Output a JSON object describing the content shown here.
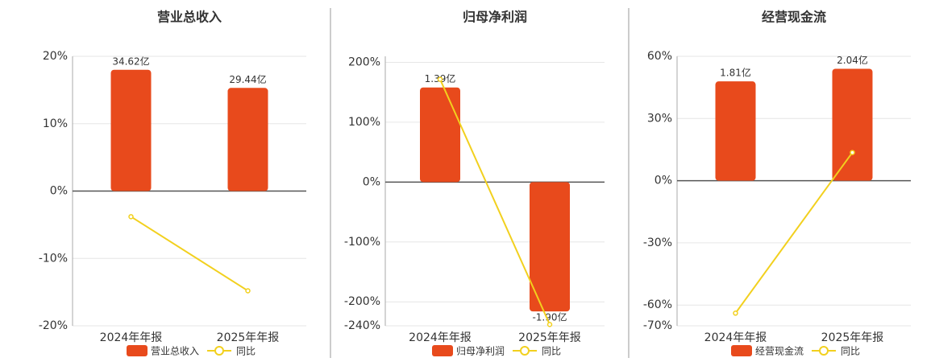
{
  "chart_data": [
    {
      "type": "bar",
      "title": "营业总收入",
      "categories": [
        "2024年年报",
        "2025年年报"
      ],
      "series": [
        {
          "name": "营业总收入",
          "color": "#e84a1c",
          "axis": "y2",
          "values": [
            34.62,
            29.44
          ],
          "value_labels": [
            "34.62亿",
            "29.44亿"
          ]
        },
        {
          "name": "同比",
          "type": "line",
          "color": "#f2d01e",
          "values": [
            -3.8,
            -14.8
          ]
        }
      ],
      "ylim": [
        -20,
        20
      ],
      "yticks": [
        {
          "value": -20,
          "label": "-20%"
        },
        {
          "value": -10,
          "label": "-10%"
        },
        {
          "value": 0,
          "label": "0%"
        },
        {
          "value": 10,
          "label": "10%"
        },
        {
          "value": 20,
          "label": "20%"
        }
      ],
      "grid": true
    },
    {
      "type": "bar",
      "title": "归母净利润",
      "categories": [
        "2024年年报",
        "2025年年报"
      ],
      "series": [
        {
          "name": "归母净利润",
          "color": "#e84a1c",
          "axis": "y2",
          "values": [
            1.39,
            -1.9
          ],
          "value_labels": [
            "1.39亿",
            "-1.90亿"
          ]
        },
        {
          "name": "同比",
          "type": "line",
          "color": "#f2d01e",
          "values": [
            171.6,
            -237.8
          ]
        }
      ],
      "ylim": [
        -240,
        210
      ],
      "yticks": [
        {
          "value": -240,
          "label": "-240%"
        },
        {
          "value": -200,
          "label": "-200%"
        },
        {
          "value": -100,
          "label": "-100%"
        },
        {
          "value": 0,
          "label": "0%"
        },
        {
          "value": 100,
          "label": "100%"
        },
        {
          "value": 200,
          "label": "200%"
        }
      ],
      "grid": true
    },
    {
      "type": "bar",
      "title": "经营现金流",
      "categories": [
        "2024年年报",
        "2025年年报"
      ],
      "series": [
        {
          "name": "经营现金流",
          "color": "#e84a1c",
          "axis": "y2",
          "values": [
            1.81,
            2.04
          ],
          "value_labels": [
            "1.81亿",
            "2.04亿"
          ]
        },
        {
          "name": "同比",
          "type": "line",
          "color": "#f2d01e",
          "values": [
            -63.9,
            13.6
          ]
        }
      ],
      "ylim": [
        -70,
        60
      ],
      "yticks": [
        {
          "value": -70,
          "label": "-70%"
        },
        {
          "value": -60,
          "label": "-60%"
        },
        {
          "value": -30,
          "label": "-30%"
        },
        {
          "value": 0,
          "label": "0%"
        },
        {
          "value": 30,
          "label": "30%"
        },
        {
          "value": 60,
          "label": "60%"
        }
      ],
      "grid": true
    }
  ]
}
